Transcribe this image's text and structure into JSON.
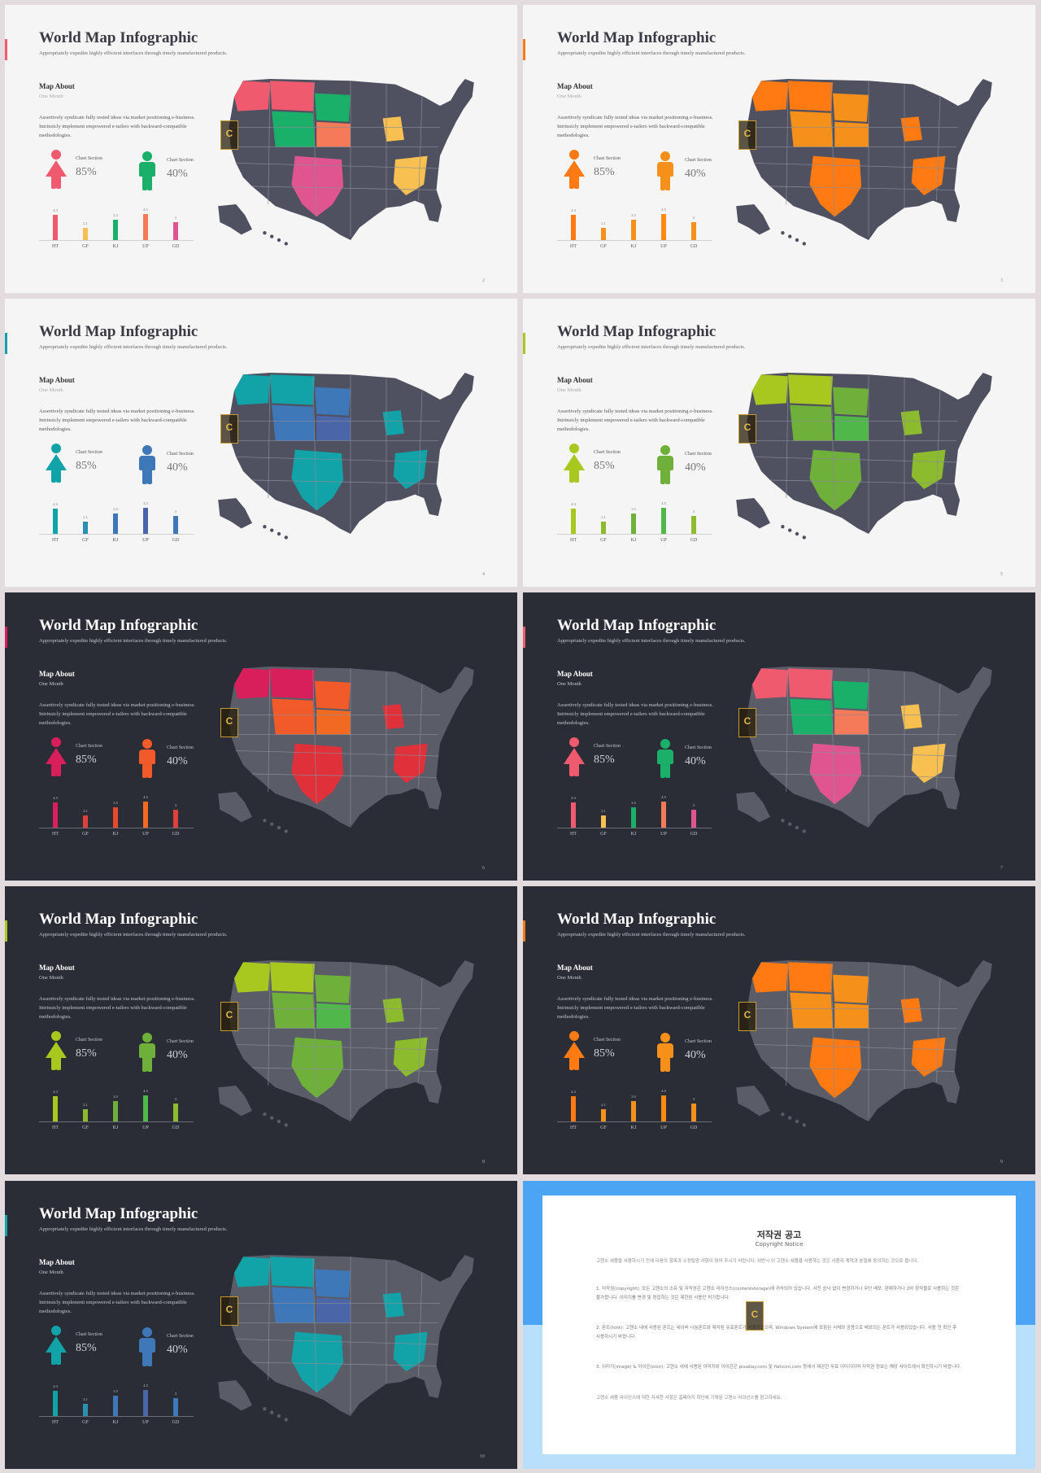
{
  "common": {
    "title": "World Map Infographic",
    "subtitle": "Appropriately expedite highly efficient interfaces through timely manufactured products.",
    "about": "Map About",
    "period": "One Month",
    "desc": "Assertively syndicate fully tested ideas via market positioning e-business. Intrinsicly implement empowered e-tailers with backward-compatible methodologies.",
    "chart_section_label": "Chart Section",
    "value_female": "85%",
    "value_male": "40%"
  },
  "chart_data": {
    "type": "bar",
    "categories": [
      "HT",
      "GF",
      "KJ",
      "UP",
      "GD"
    ],
    "values": [
      4.3,
      2.1,
      3.5,
      4.5,
      3
    ],
    "value_labels": [
      "4.3",
      "2.1",
      "3.5",
      "4.5",
      "3"
    ]
  },
  "slides": [
    {
      "page": "2",
      "theme": "light",
      "accent": "#f05a6e",
      "female": "#f05a6e",
      "male": "#1ab06a",
      "bars": [
        "#f05a6e",
        "#f8c050",
        "#1ab06a",
        "#f57a5a",
        "#e05590"
      ],
      "map": [
        "#f05a6e",
        "#f05a6e",
        "#1ab06a",
        "#1ab06a",
        "#f57a5a",
        "#e05590",
        "#f8c050",
        "#f8c050"
      ]
    },
    {
      "page": "3",
      "theme": "light",
      "accent": "#ff7a12",
      "female": "#ff7a12",
      "male": "#f5901a",
      "bars": [
        "#ff7a12",
        "#f5901a",
        "#f5901a",
        "#ff8a12",
        "#f5901a"
      ],
      "map": [
        "#ff7a12",
        "#ff7a12",
        "#f5901a",
        "#f5901a",
        "#f5901a",
        "#ff7a12",
        "#ff7a12",
        "#ff7a12"
      ]
    },
    {
      "page": "4",
      "theme": "light",
      "accent": "#12a3a8",
      "female": "#12a3a8",
      "male": "#3f78b8",
      "bars": [
        "#12a3a8",
        "#2a8fb0",
        "#3f78b8",
        "#4b66a8",
        "#3f78b8"
      ],
      "map": [
        "#12a3a8",
        "#12a3a8",
        "#3f78b8",
        "#3f78b8",
        "#4b66a8",
        "#12a3a8",
        "#12a3a8",
        "#12a3a8"
      ]
    },
    {
      "page": "5",
      "theme": "light",
      "accent": "#a8c820",
      "female": "#a8c820",
      "male": "#6fb03a",
      "bars": [
        "#a8c820",
        "#8cbc2e",
        "#6fb03a",
        "#50b84a",
        "#8cbc2e"
      ],
      "map": [
        "#a8c820",
        "#a8c820",
        "#6fb03a",
        "#6fb03a",
        "#50b84a",
        "#6fb03a",
        "#8cbc2e",
        "#8cbc2e"
      ]
    },
    {
      "page": "6",
      "theme": "dark",
      "accent": "#d81e5b",
      "female": "#d81e5b",
      "male": "#f25a2a",
      "bars": [
        "#d81e5b",
        "#e0403a",
        "#e84a2e",
        "#f26a22",
        "#e0403a"
      ],
      "map": [
        "#d81e5b",
        "#d81e5b",
        "#f25a2a",
        "#f25a2a",
        "#f26a22",
        "#e0303a",
        "#e0303a",
        "#e0303a"
      ]
    },
    {
      "page": "7",
      "theme": "dark",
      "accent": "#f05a6e",
      "female": "#f05a6e",
      "male": "#1ab06a",
      "bars": [
        "#f05a6e",
        "#f8c050",
        "#1ab06a",
        "#f57a5a",
        "#e05590"
      ],
      "map": [
        "#f05a6e",
        "#f05a6e",
        "#1ab06a",
        "#1ab06a",
        "#f57a5a",
        "#e05590",
        "#f8c050",
        "#f8c050"
      ]
    },
    {
      "page": "8",
      "theme": "dark",
      "accent": "#a8c820",
      "female": "#a8c820",
      "male": "#6fb03a",
      "bars": [
        "#a8c820",
        "#8cbc2e",
        "#6fb03a",
        "#50b84a",
        "#8cbc2e"
      ],
      "map": [
        "#a8c820",
        "#a8c820",
        "#6fb03a",
        "#6fb03a",
        "#50b84a",
        "#6fb03a",
        "#8cbc2e",
        "#8cbc2e"
      ]
    },
    {
      "page": "9",
      "theme": "dark",
      "accent": "#ff7a12",
      "female": "#ff7a12",
      "male": "#f5901a",
      "bars": [
        "#ff7a12",
        "#f5901a",
        "#f5901a",
        "#ff8a12",
        "#f5901a"
      ],
      "map": [
        "#ff7a12",
        "#ff7a12",
        "#f5901a",
        "#f5901a",
        "#f5901a",
        "#ff7a12",
        "#ff7a12",
        "#ff7a12"
      ]
    },
    {
      "page": "10",
      "theme": "dark",
      "accent": "#12a3a8",
      "female": "#12a3a8",
      "male": "#3f78b8",
      "bars": [
        "#12a3a8",
        "#2a8fb0",
        "#3f78b8",
        "#4b66a8",
        "#3f78b8"
      ],
      "map": [
        "#12a3a8",
        "#12a3a8",
        "#3f78b8",
        "#3f78b8",
        "#4b66a8",
        "#12a3a8",
        "#12a3a8",
        "#12a3a8"
      ]
    }
  ],
  "copyright": {
    "title": "저작권 공고",
    "subtitle": "Copyright Notice",
    "p0": "고헨소 세품을 사용하시기 전에 다음의 항목과 소정탑광 사항이 맞어 주시기 바랍니다. 위반시 이 고헨소 세품을 사용하는 것은 사용자 계약과 본질에 동의하는 것으로 봅니다.",
    "p1": "1. 저작권(copyright): 모든 고헨소의 소유 및 저작권은 고헨소 라이선스(contentstorage)에 귀속되어 있습니다. 사전 승낙 없이 변경하거나 무단 배포, 판매하거나 2차 창작물로 사용하는 것은 불가합니다. 이미지를 변경 및 편집하는 것은 제한된 사용만 허가합니다.",
    "p2": "2. 폰트(font): 고헨소 내에 사용된 폰트는 네이버 나눔폰트와 제작된 유료폰트가 사용되었으며, Windows System에 포함된 서체와 공용으로 배포되는 폰트가 사용되었습니다. 사용 전 확인 후 사용하시기 바랍니다.",
    "p3": "3. 이미지(image) & 아이콘(icon): 고헨소 내에 사용된 이미지와 아이콘은 pixabay.com 및 flaticon.com 등에서 제공한 무료 이미지이며 저작권 정보는 해당 사이트에서 확인하시기 바랍니다.",
    "p4": "고헨소 세품 라이선스에 대한 자세한 사항은 홈페이지 하단에 기재된 고헨소 라이선스를 참고하세요."
  }
}
